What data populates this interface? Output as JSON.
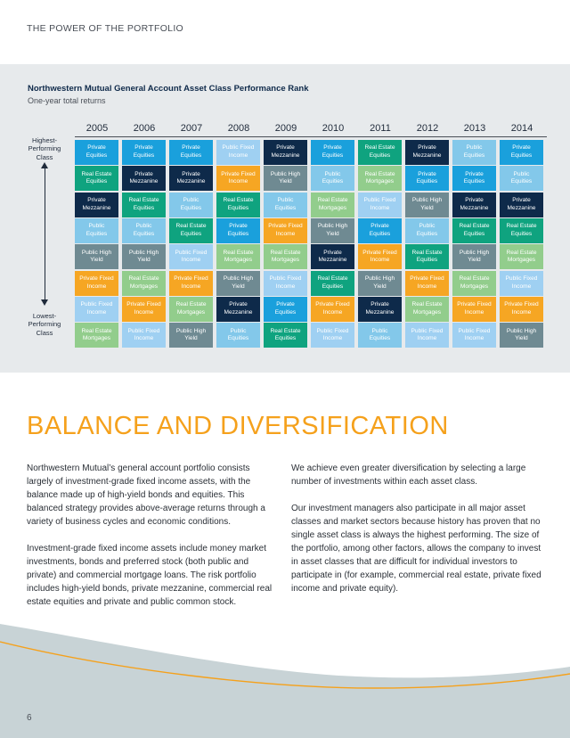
{
  "header": {
    "title": "THE POWER OF THE PORTFOLIO"
  },
  "chart": {
    "title": "Northwestern Mutual General Account Asset Class Performance Rank",
    "subtitle": "One-year total returns",
    "top_label": "Highest-\nPerforming\nClass",
    "bottom_label": "Lowest-\nPerforming\nClass"
  },
  "chart_data": {
    "type": "table",
    "years": [
      "2005",
      "2006",
      "2007",
      "2008",
      "2009",
      "2010",
      "2011",
      "2012",
      "2013",
      "2014"
    ],
    "colors": {
      "Private Equities": "#1aa0dc",
      "Real Estate Equities": "#0fa37f",
      "Private Mezzanine": "#0e2a4a",
      "Public Equities": "#83c8ea",
      "Public High Yield": "#6f8a92",
      "Private Fixed Income": "#f6a623",
      "Public Fixed Income": "#9fd0f2",
      "Real Estate Mortgages": "#92cd8c"
    },
    "columns": [
      [
        "Private Equities",
        "Real Estate Equities",
        "Private Mezzanine",
        "Public Equities",
        "Public High Yield",
        "Private Fixed Income",
        "Public Fixed Income",
        "Real Estate Mortgages"
      ],
      [
        "Private Equities",
        "Private Mezzanine",
        "Real Estate Equities",
        "Public Equities",
        "Public High Yield",
        "Real Estate Mortgages",
        "Private Fixed Income",
        "Public Fixed Income"
      ],
      [
        "Private Equities",
        "Private Mezzanine",
        "Public Equities",
        "Real Estate Equities",
        "Public Fixed Income",
        "Private Fixed Income",
        "Real Estate Mortgages",
        "Public High Yield"
      ],
      [
        "Public Fixed Income",
        "Private Fixed Income",
        "Real Estate Equities",
        "Private Equities",
        "Real Estate Mortgages",
        "Public High Yield",
        "Private Mezzanine",
        "Public Equities"
      ],
      [
        "Private Mezzanine",
        "Public High Yield",
        "Public Equities",
        "Private Fixed Income",
        "Real Estate Mortgages",
        "Public Fixed Income",
        "Private Equities",
        "Real Estate Equities"
      ],
      [
        "Private Equities",
        "Public Equities",
        "Real Estate Mortgages",
        "Public High Yield",
        "Private Mezzanine",
        "Real Estate Equities",
        "Private Fixed Income",
        "Public Fixed Income"
      ],
      [
        "Real Estate Equities",
        "Real Estate Mortgages",
        "Public Fixed Income",
        "Private Equities",
        "Private Fixed Income",
        "Public High Yield",
        "Private Mezzanine",
        "Public Equities"
      ],
      [
        "Private Mezzanine",
        "Private Equities",
        "Public High Yield",
        "Public Equities",
        "Real Estate Equities",
        "Private Fixed Income",
        "Real Estate Mortgages",
        "Public Fixed Income"
      ],
      [
        "Public Equities",
        "Private Equities",
        "Private Mezzanine",
        "Real Estate Equities",
        "Public High Yield",
        "Real Estate Mortgages",
        "Private Fixed Income",
        "Public Fixed Income"
      ],
      [
        "Private Equities",
        "Public Equities",
        "Private Mezzanine",
        "Real Estate Equities",
        "Real Estate Mortgages",
        "Public Fixed Income",
        "Private Fixed Income",
        "Public High Yield"
      ]
    ]
  },
  "section": {
    "heading": "BALANCE AND DIVERSIFICATION"
  },
  "left_column": {
    "p1": "Northwestern Mutual’s general account portfolio consists largely of investment-grade fixed income assets, with the balance made up of high-yield bonds and equities. This balanced strategy provides above-average returns through a variety of business cycles and economic conditions.",
    "p2": "Investment-grade fixed income assets include money market investments, bonds and preferred stock (both public and private) and commercial mortgage loans. The risk portfolio includes high-yield bonds, private mezzanine, commercial real estate equities and private and public common stock."
  },
  "right_column": {
    "p1": "We achieve even greater diversification by selecting a large number of investments within each asset class.",
    "p2": "Our investment managers also participate in all major asset classes and market sectors because history has proven that no single asset class is always the highest performing. The size of the portfolio, among other factors, allows the company to invest in asset classes that are difficult for individual investors to participate in (for example, commercial real estate, private fixed income and private equity)."
  },
  "footer": {
    "page_number": "6",
    "wave_color": "#c8d3d6",
    "accent_color": "#f5a11c"
  }
}
